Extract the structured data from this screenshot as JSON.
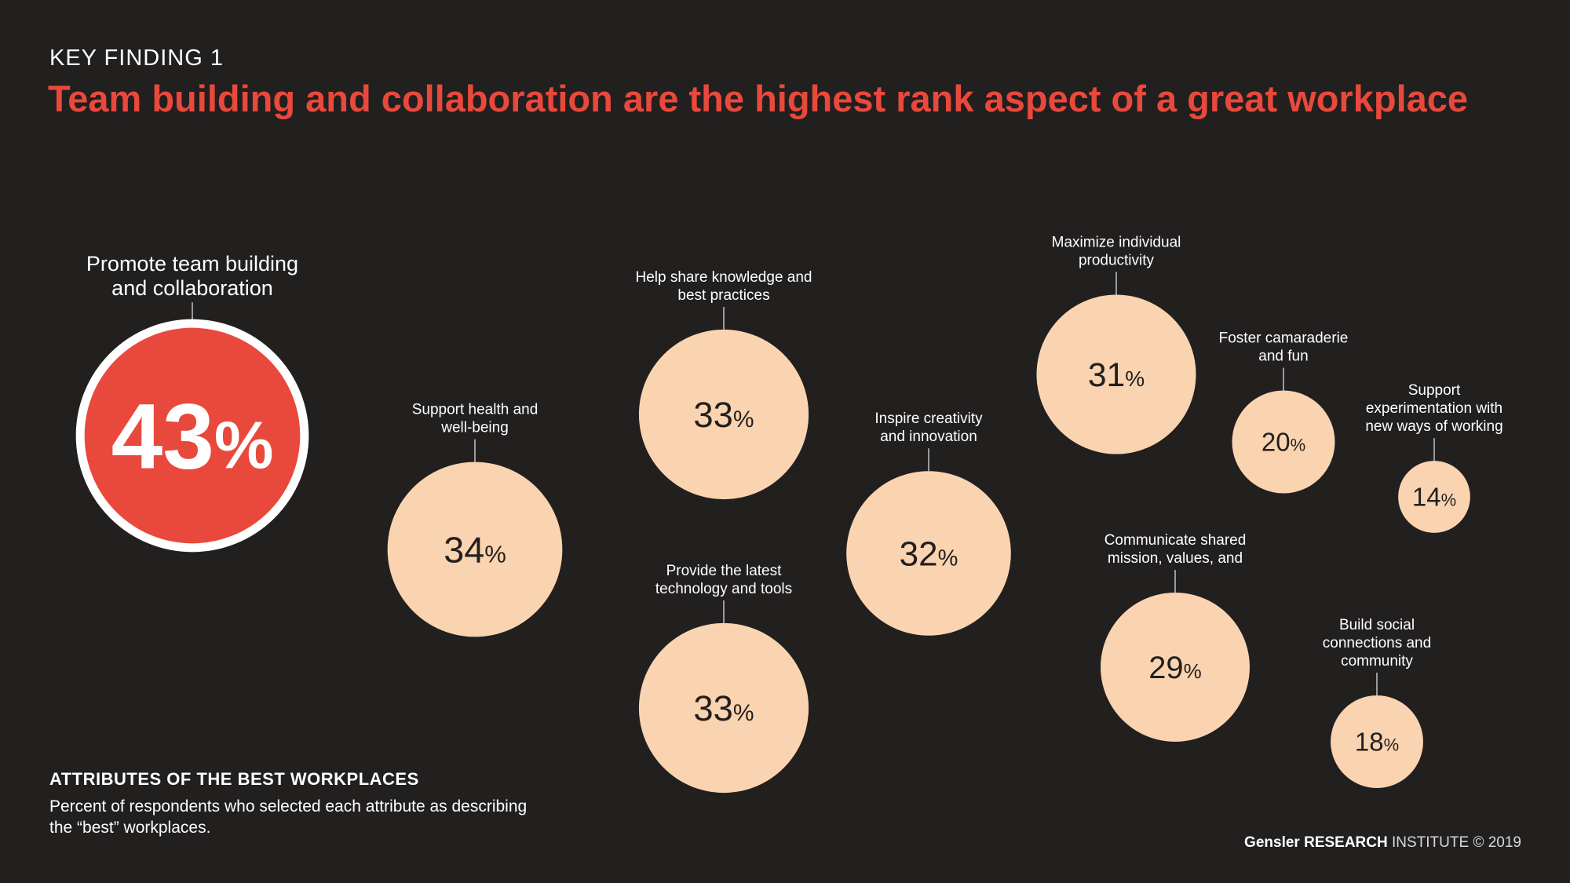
{
  "header": {
    "kicker": "KEY FINDING 1",
    "headline": "Team building and collaboration are the highest rank aspect of a great workplace"
  },
  "colors": {
    "background": "#221f1f",
    "highlight": "#e9493c",
    "bubble": "#fad4b0",
    "ring": "#ffffff",
    "label": "#ffffff",
    "value_dark": "#221f1f",
    "value_light": "#ffffff"
  },
  "chart_data": {
    "type": "bubble",
    "unit": "%",
    "items": [
      {
        "label": [
          "Promote team building",
          "and collaboration"
        ],
        "value": 43,
        "highlight": true
      },
      {
        "label": [
          "Support health and",
          "well-being"
        ],
        "value": 34
      },
      {
        "label": [
          "Help share knowledge and",
          "best practices"
        ],
        "value": 33
      },
      {
        "label": [
          "Provide the latest",
          "technology and tools"
        ],
        "value": 33
      },
      {
        "label": [
          "Inspire creativity",
          "and innovation"
        ],
        "value": 32
      },
      {
        "label": [
          "Maximize individual",
          "productivity"
        ],
        "value": 31
      },
      {
        "label": [
          "Communicate shared",
          "mission, values, and"
        ],
        "value": 29
      },
      {
        "label": [
          "Foster camaraderie",
          "and fun"
        ],
        "value": 20
      },
      {
        "label": [
          "Build social",
          "connections and",
          "community"
        ],
        "value": 18
      },
      {
        "label": [
          "Support",
          "experimentation with",
          "new ways of working"
        ],
        "value": 14
      }
    ]
  },
  "footnote": {
    "title": "ATTRIBUTES OF THE BEST WORKPLACES",
    "text": "Percent of respondents who selected each attribute as describing the “best” workplaces."
  },
  "credit": {
    "brand": "Gensler",
    "research": "RESEARCH",
    "rest": " INSTITUTE © 2019"
  }
}
